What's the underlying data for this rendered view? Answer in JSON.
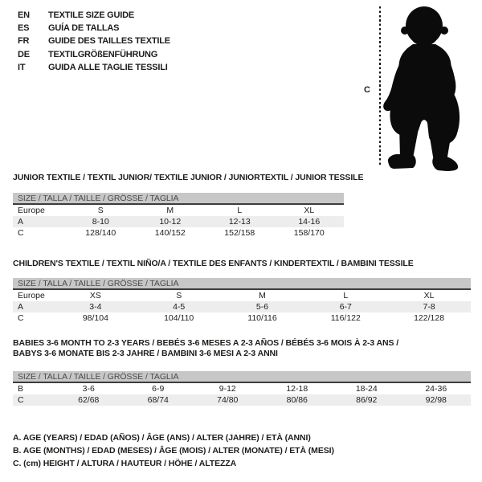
{
  "languages": [
    {
      "code": "EN",
      "title": "TEXTILE SIZE GUIDE"
    },
    {
      "code": "ES",
      "title": "GUÍA DE TALLAS"
    },
    {
      "code": "FR",
      "title": "GUIDE DES TAILLES TEXTILE"
    },
    {
      "code": "DE",
      "title": "TEXTILGRÖßENFÜHRUNG"
    },
    {
      "code": "IT",
      "title": "GUIDA ALLE TAGLIE TESSILI"
    }
  ],
  "figure": {
    "label": "C",
    "icon": "baby-silhouette-icon"
  },
  "tables": [
    {
      "heading_lines": [
        "JUNIOR TEXTILE / TEXTIL JUNIOR/ TEXTILE JUNIOR / JUNIORTEXTIL / JUNIOR TESSILE"
      ],
      "size_header": "SIZE / TALLA / TAILLE / GRÖSSE / TAGLIA",
      "rows": [
        [
          "Europe",
          "S",
          "M",
          "L",
          "XL"
        ],
        [
          "A",
          "8-10",
          "10-12",
          "12-13",
          "14-16"
        ],
        [
          "C",
          "128/140",
          "140/152",
          "152/158",
          "158/170"
        ]
      ]
    },
    {
      "heading_lines": [
        "CHILDREN'S TEXTILE / TEXTIL NIÑO/A / TEXTILE DES ENFANTS / KINDERTEXTIL / BAMBINI TESSILE"
      ],
      "size_header": "SIZE / TALLA / TAILLE / GRÖSSE / TAGLIA",
      "rows": [
        [
          "Europe",
          "XS",
          "S",
          "M",
          "L",
          "XL"
        ],
        [
          "A",
          "3-4",
          "4-5",
          "5-6",
          "6-7",
          "7-8"
        ],
        [
          "C",
          "98/104",
          "104/110",
          "110/116",
          "116/122",
          "122/128"
        ]
      ]
    },
    {
      "heading_lines": [
        "BABIES 3-6 MONTH TO 2-3 YEARS / BEBÉS 3-6 MESES A 2-3 AÑOS / BÉBÉS 3-6 MOIS À 2-3 ANS /",
        "BABYS 3-6 MONATE BIS 2-3 JAHRE / BAMBINI 3-6 MESI A 2-3 ANNI"
      ],
      "size_header": "SIZE / TALLA / TAILLE / GRÖSSE / TAGLIA",
      "rows": [
        [
          "B",
          "3-6",
          "6-9",
          "9-12",
          "12-18",
          "18-24",
          "24-36"
        ],
        [
          "C",
          "62/68",
          "68/74",
          "74/80",
          "80/86",
          "86/92",
          "92/98"
        ]
      ]
    }
  ],
  "notes": [
    "A. AGE (YEARS) / EDAD (AÑOS) / ÂGE (ANS) / ALTER (JAHRE) / ETÀ (ANNI)",
    "B. AGE (MONTHS) / EDAD (MESES) / ÂGE (MOIS) / ALTER (MONATE) / ETÀ (MESI)",
    "C. (cm) HEIGHT / ALTURA / HAUTEUR / HÖHE / ALTEZZA"
  ],
  "colors": {
    "bar_bg": "#c7c7c7",
    "bar_text": "#4a4a4a",
    "row_alt": "#ededed",
    "text": "#1d1d1b",
    "silhouette": "#0b0b0b"
  }
}
